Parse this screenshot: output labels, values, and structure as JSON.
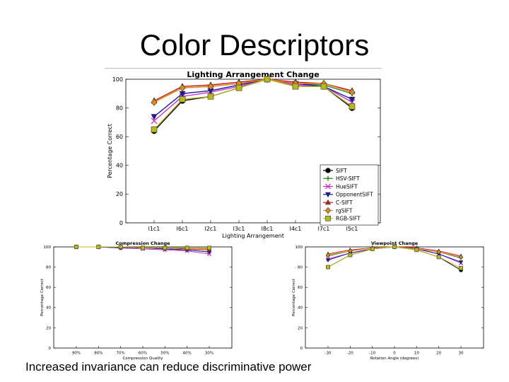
{
  "slide": {
    "title": "Color Descriptors",
    "caption": "Increased invariance can reduce discriminative power"
  },
  "legend": {
    "series": [
      {
        "name": "SIFT",
        "color": "#000000",
        "marker": "circle"
      },
      {
        "name": "HSV-SIFT",
        "color": "#2e8b2e",
        "marker": "plus"
      },
      {
        "name": "HueSIFT",
        "color": "#cc33cc",
        "marker": "x"
      },
      {
        "name": "OpponentSIFT",
        "color": "#1a1aa0",
        "marker": "tri-down"
      },
      {
        "name": "C-SIFT",
        "color": "#cc1a1a",
        "marker": "tri-up"
      },
      {
        "name": "rgSIFT",
        "color": "#e08a1a",
        "marker": "diamond"
      },
      {
        "name": "RGB-SIFT",
        "color": "#b8b81a",
        "marker": "square"
      }
    ]
  },
  "chart_data": [
    {
      "type": "line",
      "title": "Lighting Arrangement Change",
      "xlabel": "Lighting Arrangement",
      "ylabel": "Percentage Correct",
      "categories": [
        "l1c1",
        "l6c1",
        "l2c1",
        "l3c1",
        "l8c1",
        "l4c1",
        "l7c1",
        "l5c1"
      ],
      "ylim": [
        0,
        100
      ],
      "yticks": [
        0,
        20,
        40,
        60,
        80,
        100
      ],
      "grid": false,
      "legend_position": "bottom-right",
      "series": [
        {
          "name": "SIFT",
          "values": [
            64,
            85,
            88,
            94,
            100,
            95,
            95,
            80
          ]
        },
        {
          "name": "HSV-SIFT",
          "values": [
            84,
            94,
            95,
            97,
            100,
            97,
            96,
            90
          ]
        },
        {
          "name": "HueSIFT",
          "values": [
            71,
            88,
            91,
            95,
            100,
            96,
            95,
            84
          ]
        },
        {
          "name": "OpponentSIFT",
          "values": [
            74,
            90,
            92,
            96,
            100,
            97,
            95,
            86
          ]
        },
        {
          "name": "C-SIFT",
          "values": [
            85,
            95,
            96,
            98,
            100,
            98,
            97,
            92
          ]
        },
        {
          "name": "rgSIFT",
          "values": [
            84,
            94,
            95,
            97,
            100,
            97,
            97,
            91
          ]
        },
        {
          "name": "RGB-SIFT",
          "values": [
            65,
            86,
            88,
            94,
            100,
            95,
            95,
            81
          ]
        }
      ]
    },
    {
      "type": "line",
      "title": "Compression Change",
      "xlabel": "Compression Quality",
      "ylabel": "Percentage Correct",
      "categories": [
        "90%",
        "80%",
        "70%",
        "60%",
        "50%",
        "40%",
        "30%"
      ],
      "ylim": [
        0,
        100
      ],
      "yticks": [
        0,
        20,
        40,
        60,
        80,
        100
      ],
      "grid": false,
      "series": [
        {
          "name": "SIFT",
          "values": [
            100,
            100,
            99,
            99,
            98,
            97,
            95
          ]
        },
        {
          "name": "HSV-SIFT",
          "values": [
            100,
            100,
            100,
            99,
            99,
            99,
            98
          ]
        },
        {
          "name": "HueSIFT",
          "values": [
            100,
            100,
            99,
            98,
            97,
            96,
            93
          ]
        },
        {
          "name": "OpponentSIFT",
          "values": [
            100,
            100,
            99,
            99,
            98,
            97,
            95
          ]
        },
        {
          "name": "C-SIFT",
          "values": [
            100,
            100,
            100,
            99,
            99,
            98,
            97
          ]
        },
        {
          "name": "rgSIFT",
          "values": [
            100,
            100,
            100,
            99,
            99,
            99,
            98
          ]
        },
        {
          "name": "RGB-SIFT",
          "values": [
            100,
            100,
            100,
            99,
            99,
            99,
            99
          ]
        }
      ]
    },
    {
      "type": "line",
      "title": "Viewpoint Change",
      "xlabel": "Rotation Angle (degrees)",
      "ylabel": "Percentage Correct",
      "categories": [
        "-30",
        "-20",
        "-10",
        "0",
        "10",
        "20",
        "30"
      ],
      "ylim": [
        0,
        100
      ],
      "yticks": [
        0,
        20,
        40,
        60,
        80,
        100
      ],
      "grid": false,
      "series": [
        {
          "name": "SIFT",
          "values": [
            80,
            92,
            98,
            100,
            97,
            90,
            77
          ]
        },
        {
          "name": "HSV-SIFT",
          "values": [
            91,
            96,
            99,
            100,
            98,
            95,
            89
          ]
        },
        {
          "name": "HueSIFT",
          "values": [
            88,
            94,
            98,
            100,
            98,
            93,
            84
          ]
        },
        {
          "name": "OpponentSIFT",
          "values": [
            87,
            94,
            98,
            100,
            98,
            93,
            85
          ]
        },
        {
          "name": "C-SIFT",
          "values": [
            93,
            97,
            99,
            100,
            99,
            96,
            91
          ]
        },
        {
          "name": "rgSIFT",
          "values": [
            92,
            96,
            99,
            100,
            98,
            95,
            90
          ]
        },
        {
          "name": "RGB-SIFT",
          "values": [
            80,
            92,
            98,
            100,
            97,
            90,
            79
          ]
        }
      ]
    }
  ]
}
